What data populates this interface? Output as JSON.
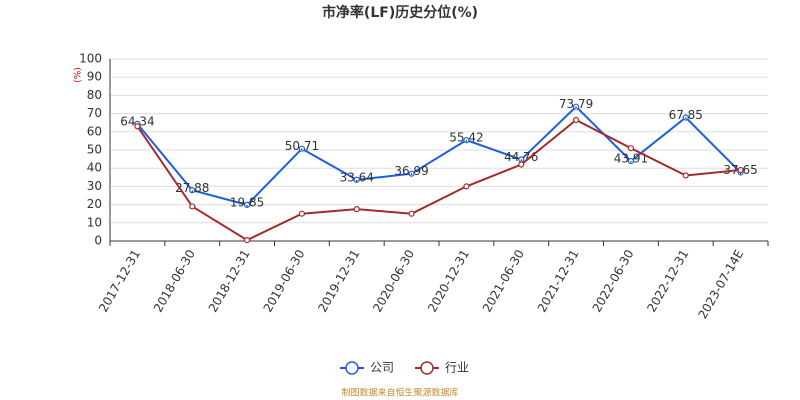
{
  "chart_data": {
    "type": "line",
    "title": "市净率(LF)历史分位(%)",
    "y_label": "(%)",
    "categories": [
      "2017-12-31",
      "2018-06-30",
      "2018-12-31",
      "2019-06-30",
      "2019-12-31",
      "2020-06-30",
      "2020-12-31",
      "2021-06-30",
      "2021-12-31",
      "2022-06-30",
      "2022-12-31",
      "2023-07-14E"
    ],
    "series": [
      {
        "name": "公司",
        "color": "#1a5fe0",
        "values": [
          64.34,
          27.88,
          19.85,
          50.71,
          33.64,
          36.99,
          55.42,
          44.76,
          73.79,
          43.91,
          67.85,
          37.65
        ],
        "show_labels": true
      },
      {
        "name": "行业",
        "color": "#a52a2a",
        "values": [
          63,
          19,
          0.5,
          15,
          17.5,
          15,
          30,
          42,
          66.5,
          51,
          36,
          39
        ],
        "show_labels": false
      }
    ],
    "ylim": [
      0,
      100
    ],
    "yticks": [
      0,
      10,
      20,
      30,
      40,
      50,
      60,
      70,
      80,
      90,
      100
    ],
    "grid": true,
    "legend": "bottom",
    "source": "制图数据来自恒生聚源数据库"
  }
}
